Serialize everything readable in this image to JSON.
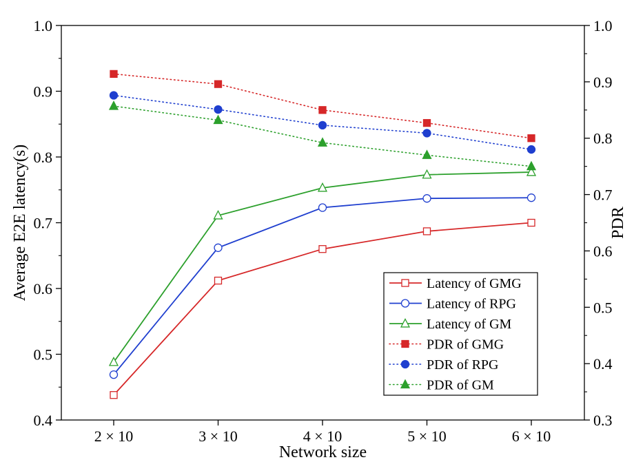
{
  "chart_data": {
    "type": "line",
    "xlabel": "Network size",
    "ylabel_left": "Average E2E latency(s)",
    "ylabel_right": "PDR",
    "categories": [
      "2 × 10",
      "3 × 10",
      "4 × 10",
      "5 × 10",
      "6 × 10"
    ],
    "ylim_left": [
      0.4,
      1.0
    ],
    "ylim_right": [
      0.3,
      1.0
    ],
    "yticks_left": [
      "0.4",
      "0.5",
      "0.6",
      "0.7",
      "0.8",
      "0.9",
      "1.0"
    ],
    "yticks_right": [
      "0.3",
      "0.4",
      "0.5",
      "0.6",
      "0.7",
      "0.8",
      "0.9",
      "1.0"
    ],
    "legend_position": "bottom-right",
    "series": [
      {
        "name": "Latency of GMG",
        "axis": "left",
        "color": "#d62728",
        "style": "solid",
        "marker": "square-open",
        "values": [
          0.438,
          0.612,
          0.66,
          0.687,
          0.7
        ]
      },
      {
        "name": "Latency of RPG",
        "axis": "left",
        "color": "#1f3fcf",
        "style": "solid",
        "marker": "circle-open",
        "values": [
          0.469,
          0.662,
          0.723,
          0.737,
          0.738
        ]
      },
      {
        "name": "Latency of GM",
        "axis": "left",
        "color": "#2ca02c",
        "style": "solid",
        "marker": "triangle-open",
        "values": [
          0.488,
          0.711,
          0.753,
          0.773,
          0.777
        ]
      },
      {
        "name": "PDR of GMG",
        "axis": "right",
        "color": "#d62728",
        "style": "dotted",
        "marker": "square-filled",
        "values": [
          0.914,
          0.896,
          0.85,
          0.827,
          0.8
        ]
      },
      {
        "name": "PDR of RPG",
        "axis": "right",
        "color": "#1f3fcf",
        "style": "dotted",
        "marker": "circle-filled",
        "values": [
          0.876,
          0.851,
          0.823,
          0.809,
          0.78
        ]
      },
      {
        "name": "PDR of GM",
        "axis": "right",
        "color": "#2ca02c",
        "style": "dotted",
        "marker": "triangle-filled",
        "values": [
          0.857,
          0.832,
          0.792,
          0.77,
          0.75
        ]
      }
    ]
  }
}
